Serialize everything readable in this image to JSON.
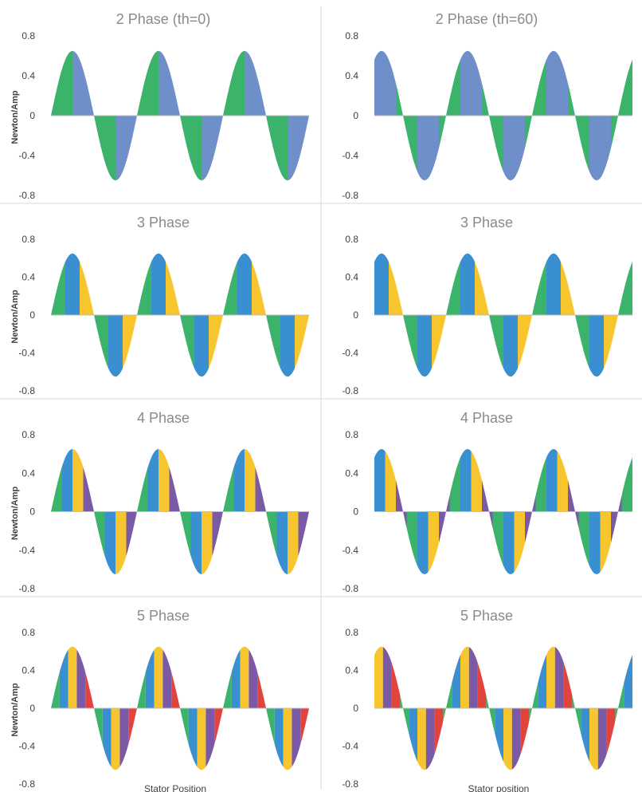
{
  "colors": {
    "green": "#3bb36a",
    "blue_2phase": "#6f8fcb",
    "blue": "#3a8fd0",
    "yellow": "#f7c52d",
    "purple": "#7a5aa6",
    "red": "#e0443c",
    "divider": "#d9d9d9"
  },
  "chart_data": [
    {
      "type": "area",
      "title": "2 Phase (th=0)",
      "ylabel": "Newton/Amp",
      "xlabel": "",
      "yticks": [
        "0.8",
        "0.4",
        "0",
        "-0.4",
        "-0.8"
      ],
      "ylim": [
        -0.8,
        0.8
      ],
      "amplitude": 0.65,
      "periods": 3,
      "phase_shift": 0,
      "segment_colors": [
        "green",
        "blue_2phase"
      ],
      "segments_per_half": 2
    },
    {
      "type": "area",
      "title": "2 Phase (th=60)",
      "ylabel": "",
      "xlabel": "",
      "yticks": [
        "0.8",
        "0.4",
        "0",
        "-0.4",
        "-0.8"
      ],
      "ylim": [
        -0.8,
        0.8
      ],
      "amplitude": 0.65,
      "periods": 3,
      "phase_shift": 60,
      "segment_colors": [
        "green",
        "blue_2phase"
      ],
      "segments_per_half": 2
    },
    {
      "type": "area",
      "title": "3 Phase",
      "ylabel": "Newton/Amp",
      "xlabel": "",
      "yticks": [
        "0.8",
        "0.4",
        "0",
        "-0.4",
        "-0.8"
      ],
      "ylim": [
        -0.8,
        0.8
      ],
      "amplitude": 0.65,
      "periods": 3,
      "phase_shift": 0,
      "segment_colors": [
        "green",
        "blue",
        "yellow"
      ],
      "segments_per_half": 3
    },
    {
      "type": "area",
      "title": "3 Phase",
      "ylabel": "",
      "xlabel": "",
      "yticks": [
        "0.8",
        "0.4",
        "0",
        "-0.4",
        "-0.8"
      ],
      "ylim": [
        -0.8,
        0.8
      ],
      "amplitude": 0.65,
      "periods": 3,
      "phase_shift": 60,
      "segment_colors": [
        "green",
        "blue",
        "yellow"
      ],
      "segments_per_half": 3
    },
    {
      "type": "area",
      "title": "4 Phase",
      "ylabel": "Newton/Amp",
      "xlabel": "",
      "yticks": [
        "0.8",
        "0.4",
        "0",
        "-0.4",
        "-0.8"
      ],
      "ylim": [
        -0.8,
        0.8
      ],
      "amplitude": 0.65,
      "periods": 3,
      "phase_shift": 0,
      "segment_colors": [
        "green",
        "blue",
        "yellow",
        "purple"
      ],
      "segments_per_half": 4
    },
    {
      "type": "area",
      "title": "4 Phase",
      "ylabel": "",
      "xlabel": "",
      "yticks": [
        "0.8",
        "0.4",
        "0",
        "-0.4",
        "-0.8"
      ],
      "ylim": [
        -0.8,
        0.8
      ],
      "amplitude": 0.65,
      "periods": 3,
      "phase_shift": 60,
      "segment_colors": [
        "green",
        "blue",
        "yellow",
        "purple"
      ],
      "segments_per_half": 4
    },
    {
      "type": "area",
      "title": "5 Phase",
      "ylabel": "Newton/Amp",
      "xlabel": "Stator Position",
      "yticks": [
        "0.8",
        "0.4",
        "0",
        "-0.4",
        "-0.8"
      ],
      "ylim": [
        -0.8,
        0.8
      ],
      "amplitude": 0.65,
      "periods": 3,
      "phase_shift": 0,
      "segment_colors": [
        "green",
        "blue",
        "yellow",
        "purple",
        "red"
      ],
      "segments_per_half": 5
    },
    {
      "type": "area",
      "title": "5 Phase",
      "ylabel": "",
      "xlabel": "Stator position",
      "yticks": [
        "0.8",
        "0.4",
        "0",
        "-0.4",
        "-0.8"
      ],
      "ylim": [
        -0.8,
        0.8
      ],
      "amplitude": 0.65,
      "periods": 3,
      "phase_shift": 60,
      "segment_colors": [
        "green",
        "blue",
        "yellow",
        "purple",
        "red"
      ],
      "segments_per_half": 5
    }
  ]
}
